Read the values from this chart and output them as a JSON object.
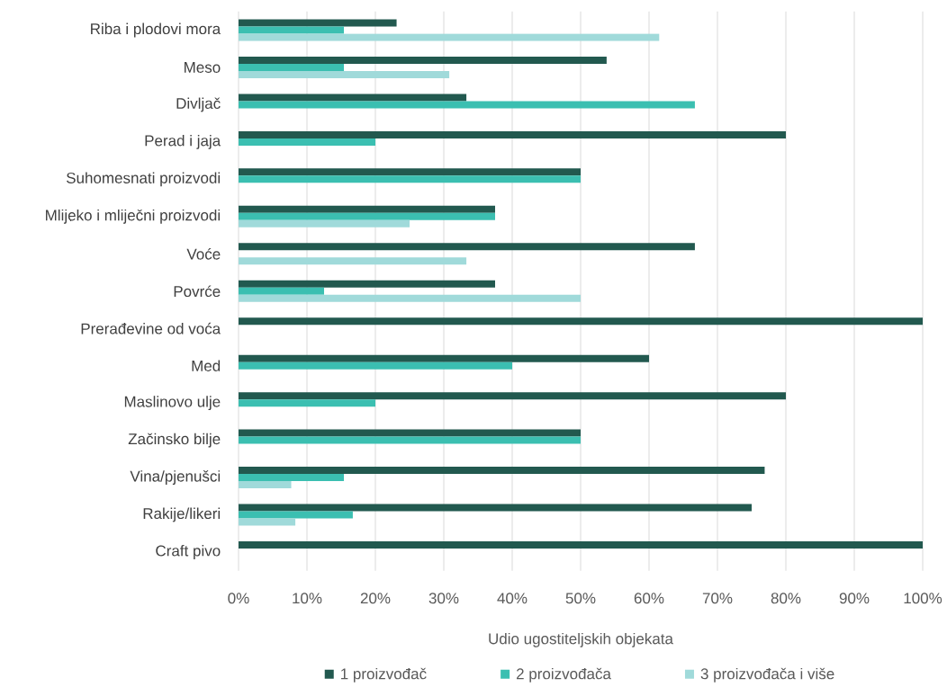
{
  "chart_data": {
    "type": "bar",
    "orientation": "horizontal",
    "categories": [
      "Riba i plodovi mora",
      "Meso",
      "Divljač",
      "Perad i jaja",
      "Suhomesnati proizvodi",
      "Mlijeko i mliječni proizvodi",
      "Voće",
      "Povrće",
      "Prerađevine od voća",
      "Med",
      "Maslinovo ulje",
      "Začinsko bilje",
      "Vina/pjenušci",
      "Rakije/likeri",
      "Craft pivo"
    ],
    "series": [
      {
        "name": "1 proizvođač",
        "color": "#22594f",
        "values": [
          23.1,
          53.8,
          33.3,
          80,
          50,
          37.5,
          66.7,
          37.5,
          100,
          60,
          80,
          50,
          76.9,
          75,
          100
        ]
      },
      {
        "name": "2 proizvođača",
        "color": "#3bbfb1",
        "values": [
          15.4,
          15.4,
          66.7,
          20,
          50,
          37.5,
          null,
          12.5,
          null,
          40,
          20,
          50,
          15.4,
          16.7,
          null
        ]
      },
      {
        "name": "3 proizvođača i više",
        "color": "#a0dada",
        "values": [
          61.5,
          30.8,
          null,
          null,
          null,
          25,
          33.3,
          50,
          null,
          null,
          null,
          null,
          7.7,
          8.3,
          null
        ]
      }
    ],
    "xlabel": "Udio ugostiteljskih objekata",
    "xlim": [
      0,
      100
    ],
    "xticks": [
      {
        "value": 0,
        "label": "0%"
      },
      {
        "value": 10,
        "label": "10%"
      },
      {
        "value": 20,
        "label": "20%"
      },
      {
        "value": 30,
        "label": "30%"
      },
      {
        "value": 40,
        "label": "40%"
      },
      {
        "value": 50,
        "label": "50%"
      },
      {
        "value": 60,
        "label": "60%"
      },
      {
        "value": 70,
        "label": "70%"
      },
      {
        "value": 80,
        "label": "80%"
      },
      {
        "value": 90,
        "label": "90%"
      },
      {
        "value": 100,
        "label": "100%"
      }
    ],
    "grid": "x",
    "legend": "bottom"
  }
}
